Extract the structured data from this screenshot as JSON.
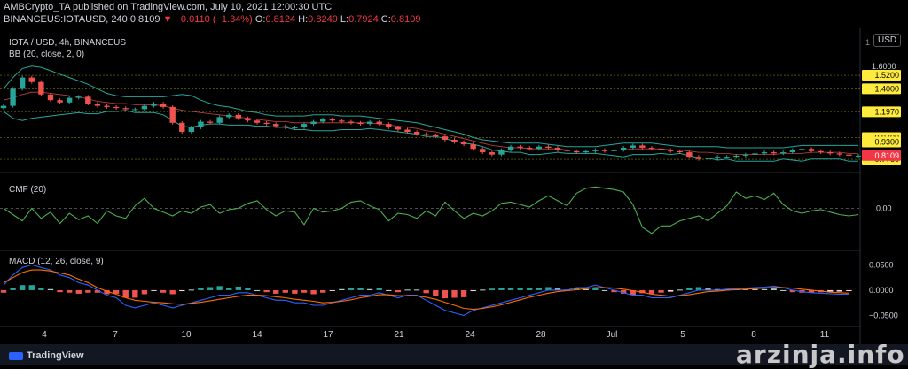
{
  "header": {
    "publisher": "AMBCrypto_TA published on TradingView.com, July 10, 2021 12:00:30 UTC",
    "ticker": "BINANCEUS:IOTAUSD, 240",
    "last": "0.8109",
    "change": "▼ −0.0110 (−1.34%)",
    "ohlc_o_label": "O:",
    "ohlc_o": "0.8124",
    "ohlc_h_label": "H:",
    "ohlc_h": "0.8249",
    "ohlc_l_label": "L:",
    "ohlc_l": "0.7924",
    "ohlc_c_label": "C:",
    "ohlc_c": "0.8109"
  },
  "panes": {
    "main_label": "IOTA / USD, 4h, BINANCEUS",
    "bb_label": "BB (20, close, 2, 0)",
    "cmf_label": "CMF (20)",
    "macd_label": "MACD (12, 26, close, 9)"
  },
  "currency": "USD",
  "scale_marker": "1",
  "footer": {
    "brand": "TradingView",
    "watermark": "arzinja.info"
  },
  "colors": {
    "background": "#000000",
    "up": "#26a69a",
    "down": "#ef5350",
    "bb_band": "#26a69a",
    "bb_basis": "#ef5350",
    "cmf": "#4caf50",
    "macd": "#2962ff",
    "signal": "#ff6d00",
    "level_line": "#e6e600",
    "price_tag": "#f23645",
    "level_tag": "#ffeb3b"
  },
  "chart_data": [
    {
      "type": "candlestick",
      "title": "IOTA / USD, 4h, BINANCEUS",
      "x_ticks": [
        "4",
        "7",
        "10",
        "14",
        "17",
        "21",
        "24",
        "28",
        "Jul",
        "5",
        "8",
        "11"
      ],
      "y_axis_labels": [
        "1.6000"
      ],
      "levels": [
        "1.5200",
        "1.4000",
        "1.1970",
        "0.9700",
        "0.9300",
        "0.7780"
      ],
      "last_price": "0.8109",
      "ylim": [
        0.7,
        1.7
      ],
      "close": [
        1.25,
        1.4,
        1.5,
        1.46,
        1.35,
        1.3,
        1.28,
        1.32,
        1.33,
        1.27,
        1.25,
        1.24,
        1.23,
        1.22,
        1.22,
        1.25,
        1.27,
        1.24,
        1.1,
        1.02,
        1.06,
        1.11,
        1.1,
        1.15,
        1.17,
        1.14,
        1.12,
        1.1,
        1.09,
        1.07,
        1.06,
        1.06,
        1.09,
        1.11,
        1.13,
        1.12,
        1.11,
        1.1,
        1.09,
        1.11,
        1.09,
        1.06,
        1.04,
        1.02,
        1.0,
        0.99,
        0.98,
        0.95,
        0.93,
        0.91,
        0.87,
        0.84,
        0.82,
        0.86,
        0.89,
        0.88,
        0.87,
        0.89,
        0.88,
        0.86,
        0.85,
        0.84,
        0.85,
        0.86,
        0.85,
        0.86,
        0.88,
        0.9,
        0.88,
        0.87,
        0.86,
        0.85,
        0.84,
        0.8,
        0.78,
        0.79,
        0.8,
        0.8,
        0.81,
        0.82,
        0.83,
        0.84,
        0.83,
        0.84,
        0.86,
        0.87,
        0.85,
        0.84,
        0.83,
        0.82,
        0.81,
        0.81
      ],
      "bb_upper": [
        1.4,
        1.5,
        1.58,
        1.6,
        1.59,
        1.56,
        1.53,
        1.5,
        1.47,
        1.44,
        1.4,
        1.36,
        1.34,
        1.33,
        1.33,
        1.33,
        1.33,
        1.33,
        1.34,
        1.35,
        1.34,
        1.3,
        1.27,
        1.25,
        1.24,
        1.22,
        1.2,
        1.19,
        1.17,
        1.16,
        1.16,
        1.16,
        1.16,
        1.17,
        1.17,
        1.17,
        1.16,
        1.16,
        1.16,
        1.15,
        1.14,
        1.13,
        1.12,
        1.11,
        1.1,
        1.08,
        1.06,
        1.04,
        1.02,
        1.0,
        0.97,
        0.95,
        0.94,
        0.93,
        0.92,
        0.92,
        0.92,
        0.92,
        0.91,
        0.9,
        0.89,
        0.89,
        0.89,
        0.89,
        0.9,
        0.91,
        0.92,
        0.92,
        0.92,
        0.92,
        0.91,
        0.9,
        0.89,
        0.89,
        0.89,
        0.89,
        0.89,
        0.88,
        0.88,
        0.88,
        0.88,
        0.88,
        0.88,
        0.88,
        0.89,
        0.9,
        0.9,
        0.9,
        0.9,
        0.9,
        0.9,
        0.9
      ],
      "bb_basis": [
        1.3,
        1.32,
        1.35,
        1.37,
        1.37,
        1.36,
        1.35,
        1.34,
        1.33,
        1.31,
        1.29,
        1.28,
        1.27,
        1.27,
        1.26,
        1.26,
        1.26,
        1.25,
        1.23,
        1.21,
        1.2,
        1.19,
        1.18,
        1.17,
        1.16,
        1.15,
        1.14,
        1.13,
        1.12,
        1.11,
        1.11,
        1.1,
        1.1,
        1.1,
        1.1,
        1.1,
        1.1,
        1.1,
        1.1,
        1.1,
        1.09,
        1.08,
        1.07,
        1.06,
        1.05,
        1.03,
        1.02,
        1.0,
        0.98,
        0.96,
        0.94,
        0.92,
        0.9,
        0.89,
        0.88,
        0.88,
        0.87,
        0.87,
        0.87,
        0.87,
        0.86,
        0.86,
        0.86,
        0.86,
        0.86,
        0.86,
        0.86,
        0.87,
        0.87,
        0.87,
        0.87,
        0.86,
        0.86,
        0.85,
        0.84,
        0.84,
        0.83,
        0.83,
        0.82,
        0.82,
        0.82,
        0.82,
        0.82,
        0.83,
        0.83,
        0.83,
        0.84,
        0.84,
        0.84,
        0.84,
        0.83,
        0.83
      ],
      "bb_lower": [
        1.2,
        1.14,
        1.12,
        1.14,
        1.15,
        1.16,
        1.17,
        1.18,
        1.19,
        1.18,
        1.18,
        1.2,
        1.2,
        1.21,
        1.19,
        1.19,
        1.19,
        1.17,
        1.12,
        1.07,
        1.06,
        1.08,
        1.09,
        1.09,
        1.08,
        1.08,
        1.08,
        1.07,
        1.07,
        1.06,
        1.06,
        1.04,
        1.04,
        1.03,
        1.03,
        1.03,
        1.04,
        1.04,
        1.04,
        1.05,
        1.04,
        1.03,
        1.02,
        1.01,
        1.0,
        0.98,
        0.98,
        0.96,
        0.94,
        0.92,
        0.91,
        0.89,
        0.86,
        0.85,
        0.84,
        0.84,
        0.82,
        0.82,
        0.83,
        0.84,
        0.83,
        0.83,
        0.83,
        0.83,
        0.82,
        0.81,
        0.8,
        0.82,
        0.82,
        0.82,
        0.83,
        0.82,
        0.83,
        0.81,
        0.79,
        0.79,
        0.77,
        0.78,
        0.76,
        0.76,
        0.76,
        0.76,
        0.76,
        0.78,
        0.77,
        0.76,
        0.78,
        0.78,
        0.78,
        0.78,
        0.76,
        0.76
      ]
    },
    {
      "type": "line",
      "title": "CMF (20)",
      "y_axis_labels": [
        "0.00"
      ],
      "ylim": [
        -0.3,
        0.25
      ],
      "values": [
        0.0,
        -0.05,
        -0.1,
        0.0,
        -0.08,
        -0.03,
        -0.12,
        -0.04,
        -0.09,
        -0.06,
        -0.12,
        -0.02,
        -0.06,
        -0.08,
        0.02,
        0.08,
        0.0,
        -0.03,
        -0.06,
        -0.02,
        -0.04,
        0.01,
        0.03,
        -0.04,
        -0.01,
        0.0,
        0.04,
        0.06,
        -0.01,
        -0.06,
        -0.02,
        -0.03,
        -0.13,
        0.0,
        -0.03,
        -0.02,
        0.0,
        0.05,
        0.06,
        0.02,
        -0.01,
        -0.1,
        -0.04,
        -0.05,
        -0.08,
        -0.02,
        -0.06,
        0.05,
        -0.02,
        -0.08,
        -0.04,
        -0.06,
        -0.02,
        0.04,
        0.05,
        0.03,
        0.01,
        0.06,
        0.1,
        0.06,
        0.02,
        0.12,
        0.16,
        0.17,
        0.16,
        0.15,
        0.13,
        0.03,
        -0.15,
        -0.2,
        -0.14,
        -0.14,
        -0.1,
        -0.08,
        -0.06,
        -0.1,
        -0.04,
        0.02,
        0.13,
        0.08,
        0.1,
        0.07,
        0.12,
        0.03,
        -0.02,
        -0.04,
        -0.02,
        -0.01,
        -0.03,
        -0.05,
        -0.06,
        -0.05
      ]
    },
    {
      "type": "bar",
      "title": "MACD (12, 26, close, 9)",
      "y_axis_labels": [
        "0.0500",
        "0.0000",
        "−0.0500"
      ],
      "ylim": [
        -0.065,
        0.07
      ],
      "macd": [
        0.01,
        0.03,
        0.045,
        0.05,
        0.045,
        0.04,
        0.03,
        0.025,
        0.015,
        0.01,
        0.0,
        -0.01,
        -0.015,
        -0.03,
        -0.035,
        -0.03,
        -0.025,
        -0.03,
        -0.035,
        -0.03,
        -0.025,
        -0.02,
        -0.015,
        -0.01,
        -0.01,
        -0.005,
        -0.005,
        -0.01,
        -0.015,
        -0.02,
        -0.02,
        -0.025,
        -0.025,
        -0.03,
        -0.03,
        -0.025,
        -0.02,
        -0.015,
        -0.01,
        -0.01,
        -0.005,
        -0.01,
        -0.015,
        -0.01,
        -0.01,
        -0.02,
        -0.03,
        -0.04,
        -0.045,
        -0.05,
        -0.04,
        -0.035,
        -0.03,
        -0.025,
        -0.02,
        -0.015,
        -0.01,
        -0.005,
        0.0,
        0.0,
        0.0,
        0.005,
        0.005,
        0.01,
        0.005,
        0.0,
        -0.005,
        -0.01,
        -0.01,
        -0.015,
        -0.015,
        -0.015,
        -0.01,
        -0.005,
        0.0,
        0.0,
        0.0,
        0.002,
        0.003,
        0.004,
        0.005,
        0.006,
        0.008,
        0.005,
        0.0,
        -0.003,
        -0.005,
        -0.006,
        -0.007,
        -0.008,
        -0.008
      ],
      "signal": [
        0.015,
        0.025,
        0.035,
        0.04,
        0.04,
        0.038,
        0.034,
        0.03,
        0.022,
        0.015,
        0.005,
        -0.002,
        -0.008,
        -0.015,
        -0.02,
        -0.022,
        -0.024,
        -0.025,
        -0.027,
        -0.028,
        -0.026,
        -0.024,
        -0.021,
        -0.018,
        -0.015,
        -0.012,
        -0.01,
        -0.01,
        -0.011,
        -0.013,
        -0.015,
        -0.018,
        -0.02,
        -0.022,
        -0.025,
        -0.024,
        -0.022,
        -0.019,
        -0.015,
        -0.012,
        -0.009,
        -0.009,
        -0.011,
        -0.011,
        -0.011,
        -0.014,
        -0.018,
        -0.024,
        -0.03,
        -0.036,
        -0.038,
        -0.036,
        -0.033,
        -0.029,
        -0.024,
        -0.019,
        -0.014,
        -0.01,
        -0.006,
        -0.003,
        -0.001,
        0.001,
        0.003,
        0.005,
        0.005,
        0.004,
        0.002,
        -0.001,
        -0.004,
        -0.008,
        -0.01,
        -0.012,
        -0.011,
        -0.009,
        -0.006,
        -0.003,
        -0.002,
        0.0,
        0.001,
        0.002,
        0.003,
        0.004,
        0.005,
        0.005,
        0.004,
        0.002,
        0.0,
        -0.002,
        -0.004,
        -0.005,
        -0.006
      ]
    }
  ]
}
